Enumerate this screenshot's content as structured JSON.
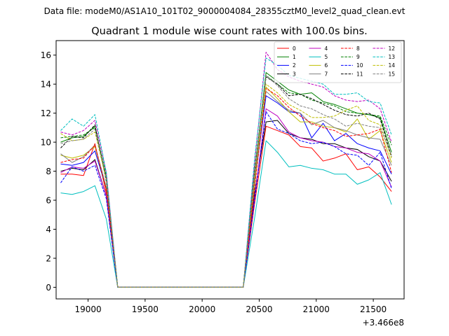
{
  "chart_data": {
    "type": "line",
    "suptitle": "Data file: modeM0/AS1A10_101T02_9000004084_28355cztM0_level2_quad_clean.evt",
    "title": "Quadrant 1 module wise count rates with 100.0s bins.",
    "xlabel": "",
    "ylabel": "",
    "x_offset_label": "+3.466e8",
    "xlim": [
      18720,
      21770
    ],
    "ylim": [
      -0.8,
      17
    ],
    "x_ticks": [
      19000,
      19500,
      20000,
      20500,
      21000,
      21500
    ],
    "y_ticks": [
      0,
      2,
      4,
      6,
      8,
      10,
      12,
      14,
      16
    ],
    "x": [
      18760,
      18860,
      18960,
      19060,
      19160,
      19260,
      19360,
      19460,
      19560,
      19660,
      19760,
      19860,
      19960,
      20060,
      20160,
      20260,
      20360,
      20460,
      20560,
      20660,
      20760,
      20860,
      20960,
      21060,
      21160,
      21260,
      21360,
      21460,
      21560,
      21660
    ],
    "legend_placement": "upper-right",
    "legend_columns": 4,
    "grid": false,
    "series": [
      {
        "name": "0",
        "color": "#ff0000",
        "dash": "solid",
        "values": [
          7.8,
          7.8,
          7.7,
          9.9,
          6.5,
          0,
          0,
          0,
          0,
          0,
          0,
          0,
          0,
          0,
          0,
          0,
          0,
          5.8,
          11.1,
          10.8,
          10.5,
          9.7,
          9.6,
          8.7,
          8.9,
          9.2,
          8.1,
          8.3,
          7.6,
          6.6
        ]
      },
      {
        "name": "1",
        "color": "#008000",
        "dash": "solid",
        "values": [
          10.0,
          10.3,
          10.4,
          11.1,
          7.5,
          0,
          0,
          0,
          0,
          0,
          0,
          0,
          0,
          0,
          0,
          0,
          0,
          8.0,
          14.8,
          14.2,
          13.6,
          13.3,
          13.4,
          12.8,
          12.6,
          12.3,
          12.0,
          11.9,
          11.7,
          9.3
        ]
      },
      {
        "name": "2",
        "color": "#0000ff",
        "dash": "solid",
        "values": [
          8.5,
          8.4,
          8.6,
          9.4,
          6.8,
          0,
          0,
          0,
          0,
          0,
          0,
          0,
          0,
          0,
          0,
          0,
          0,
          7.2,
          13.2,
          12.7,
          12.1,
          12.0,
          10.3,
          11.3,
          10.1,
          10.6,
          9.9,
          9.6,
          9.4,
          7.8
        ]
      },
      {
        "name": "3",
        "color": "#000000",
        "dash": "solid",
        "values": [
          8.0,
          8.2,
          8.1,
          8.8,
          6.3,
          0,
          0,
          0,
          0,
          0,
          0,
          0,
          0,
          0,
          0,
          0,
          0,
          6.5,
          11.4,
          11.5,
          10.6,
          10.3,
          10.2,
          9.9,
          9.9,
          9.6,
          9.5,
          9.0,
          8.7,
          7.3
        ]
      },
      {
        "name": "4",
        "color": "#bf00bf",
        "dash": "solid",
        "values": [
          7.9,
          8.3,
          8.2,
          8.7,
          6.3,
          0,
          0,
          0,
          0,
          0,
          0,
          0,
          0,
          0,
          0,
          0,
          0,
          6.2,
          12.3,
          11.8,
          10.7,
          10.3,
          10.1,
          10.0,
          9.7,
          9.6,
          9.3,
          9.2,
          8.7,
          6.9
        ]
      },
      {
        "name": "5",
        "color": "#00bfbf",
        "dash": "solid",
        "values": [
          6.5,
          6.4,
          6.6,
          7.0,
          4.7,
          0,
          0,
          0,
          0,
          0,
          0,
          0,
          0,
          0,
          0,
          0,
          0,
          4.8,
          10.1,
          9.3,
          8.3,
          8.4,
          8.2,
          8.1,
          7.8,
          7.8,
          7.1,
          7.4,
          7.9,
          5.7
        ]
      },
      {
        "name": "6",
        "color": "#bfbf00",
        "dash": "solid",
        "values": [
          9.1,
          8.9,
          9.1,
          9.7,
          6.8,
          0,
          0,
          0,
          0,
          0,
          0,
          0,
          0,
          0,
          0,
          0,
          0,
          7.1,
          13.8,
          13.0,
          12.1,
          11.4,
          11.4,
          11.1,
          11.0,
          10.7,
          11.6,
          10.2,
          10.8,
          8.6
        ]
      },
      {
        "name": "7",
        "color": "#808080",
        "dash": "solid",
        "values": [
          9.2,
          8.6,
          9.0,
          9.8,
          6.9,
          0,
          0,
          0,
          0,
          0,
          0,
          0,
          0,
          0,
          0,
          0,
          0,
          7.5,
          13.5,
          12.8,
          12.2,
          12.0,
          11.2,
          11.5,
          11.0,
          10.8,
          10.5,
          10.3,
          10.2,
          8.4
        ]
      },
      {
        "name": "8",
        "color": "#ff0000",
        "dash": "dashed",
        "values": [
          8.6,
          8.8,
          8.9,
          9.8,
          6.7,
          0,
          0,
          0,
          0,
          0,
          0,
          0,
          0,
          0,
          0,
          0,
          0,
          6.9,
          13.7,
          13.2,
          12.4,
          11.8,
          11.3,
          11.0,
          10.8,
          10.4,
          10.5,
          10.6,
          10.9,
          7.9
        ]
      },
      {
        "name": "9",
        "color": "#008000",
        "dash": "dashed",
        "values": [
          10.3,
          10.4,
          10.5,
          11.0,
          7.7,
          0,
          0,
          0,
          0,
          0,
          0,
          0,
          0,
          0,
          0,
          0,
          0,
          8.1,
          14.6,
          14.0,
          13.4,
          13.3,
          12.9,
          12.7,
          12.5,
          12.1,
          12.0,
          11.9,
          11.8,
          9.8
        ]
      },
      {
        "name": "10",
        "color": "#0000ff",
        "dash": "dashed",
        "values": [
          7.2,
          8.3,
          8.0,
          8.4,
          6.1,
          0,
          0,
          0,
          0,
          0,
          0,
          0,
          0,
          0,
          0,
          0,
          0,
          6.0,
          12.1,
          10.9,
          10.6,
          10.1,
          9.9,
          10.0,
          9.7,
          9.2,
          9.1,
          8.4,
          9.3,
          6.8
        ]
      },
      {
        "name": "11",
        "color": "#000000",
        "dash": "dashed",
        "values": [
          9.6,
          10.4,
          10.3,
          11.2,
          7.3,
          0,
          0,
          0,
          0,
          0,
          0,
          0,
          0,
          0,
          0,
          0,
          0,
          7.8,
          14.5,
          14.0,
          13.2,
          13.3,
          13.0,
          12.6,
          12.2,
          11.9,
          11.8,
          12.0,
          11.6,
          9.0
        ]
      },
      {
        "name": "12",
        "color": "#bf00bf",
        "dash": "dashed",
        "values": [
          10.7,
          10.5,
          10.8,
          11.5,
          7.9,
          0,
          0,
          0,
          0,
          0,
          0,
          0,
          0,
          0,
          0,
          0,
          0,
          8.6,
          16.2,
          15.0,
          14.5,
          14.2,
          14.0,
          13.8,
          13.2,
          12.9,
          12.8,
          12.9,
          12.3,
          10.0
        ]
      },
      {
        "name": "13",
        "color": "#00bfbf",
        "dash": "dashed",
        "values": [
          10.8,
          11.6,
          11.1,
          11.9,
          7.9,
          0,
          0,
          0,
          0,
          0,
          0,
          0,
          0,
          0,
          0,
          0,
          0,
          8.9,
          15.8,
          15.3,
          14.6,
          14.4,
          14.2,
          14.0,
          13.3,
          13.3,
          13.4,
          12.8,
          12.7,
          10.5
        ]
      },
      {
        "name": "14",
        "color": "#bfbf00",
        "dash": "dashed",
        "values": [
          10.6,
          10.1,
          10.2,
          10.7,
          7.4,
          0,
          0,
          0,
          0,
          0,
          0,
          0,
          0,
          0,
          0,
          0,
          0,
          7.7,
          14.0,
          13.4,
          12.6,
          12.2,
          11.7,
          11.7,
          11.8,
          12.2,
          12.5,
          11.5,
          11.2,
          8.9
        ]
      },
      {
        "name": "15",
        "color": "#808080",
        "dash": "dashed",
        "values": [
          9.9,
          10.1,
          10.2,
          10.9,
          7.5,
          0,
          0,
          0,
          0,
          0,
          0,
          0,
          0,
          0,
          0,
          0,
          0,
          7.9,
          14.6,
          13.9,
          13.0,
          12.5,
          12.3,
          11.9,
          11.6,
          11.1,
          11.3,
          11.1,
          11.0,
          9.1
        ]
      }
    ]
  }
}
